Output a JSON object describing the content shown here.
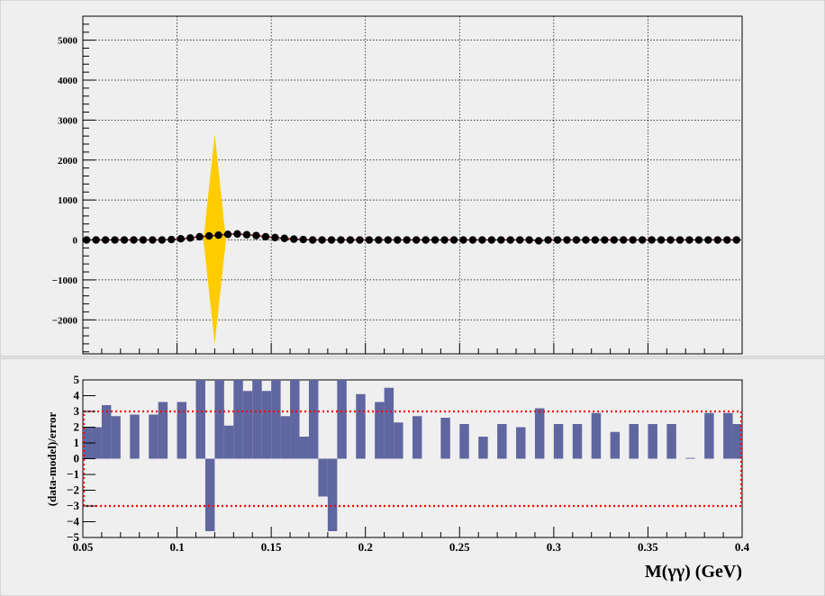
{
  "chart_data": [
    {
      "panel": "top",
      "type": "scatter",
      "x": [
        0.052,
        0.057,
        0.062,
        0.067,
        0.072,
        0.077,
        0.082,
        0.087,
        0.092,
        0.097,
        0.102,
        0.107,
        0.112,
        0.117,
        0.122,
        0.127,
        0.132,
        0.137,
        0.142,
        0.147,
        0.152,
        0.157,
        0.162,
        0.167,
        0.172,
        0.177,
        0.182,
        0.187,
        0.192,
        0.197,
        0.202,
        0.207,
        0.212,
        0.217,
        0.222,
        0.227,
        0.232,
        0.237,
        0.242,
        0.247,
        0.252,
        0.257,
        0.262,
        0.267,
        0.272,
        0.277,
        0.282,
        0.287,
        0.292,
        0.297,
        0.302,
        0.307,
        0.312,
        0.317,
        0.322,
        0.327,
        0.332,
        0.337,
        0.342,
        0.347,
        0.352,
        0.357,
        0.362,
        0.367,
        0.372,
        0.377,
        0.382,
        0.387,
        0.392,
        0.397
      ],
      "values": [
        0,
        0,
        0,
        0,
        0,
        0,
        0,
        0,
        0,
        10,
        30,
        50,
        80,
        100,
        120,
        140,
        150,
        130,
        110,
        80,
        60,
        40,
        20,
        10,
        0,
        0,
        0,
        0,
        0,
        0,
        0,
        0,
        0,
        0,
        0,
        0,
        0,
        0,
        0,
        0,
        0,
        0,
        0,
        0,
        0,
        0,
        0,
        0,
        -20,
        0,
        0,
        0,
        0,
        0,
        0,
        0,
        0,
        0,
        0,
        0,
        0,
        0,
        0,
        0,
        0,
        0,
        0,
        0,
        0,
        0
      ],
      "band": {
        "center": 0.12,
        "half_width": 0.006,
        "top": 2650,
        "bottom": -2600,
        "color": "#ffcc00"
      },
      "marker_color": "#000000",
      "model_color": "#ff0000",
      "xlim": [
        0.05,
        0.4
      ],
      "ylim": [
        -2850,
        5600
      ],
      "yticks": [
        -2000,
        -1000,
        0,
        1000,
        2000,
        3000,
        4000,
        5000
      ],
      "ytick_labels": [
        "−2000",
        "−1000",
        "0",
        "1000",
        "2000",
        "3000",
        "4000",
        "5000"
      ],
      "grid": true
    },
    {
      "panel": "bottom",
      "type": "bar",
      "x": [
        0.0525,
        0.0575,
        0.0625,
        0.0675,
        0.0725,
        0.0775,
        0.0825,
        0.0875,
        0.0925,
        0.0975,
        0.1025,
        0.1075,
        0.1125,
        0.1175,
        0.1225,
        0.1275,
        0.1325,
        0.1375,
        0.1425,
        0.1475,
        0.1525,
        0.1575,
        0.1625,
        0.1675,
        0.1725,
        0.1775,
        0.1825,
        0.1875,
        0.1925,
        0.1975,
        0.2025,
        0.2075,
        0.2125,
        0.2175,
        0.2225,
        0.2275,
        0.2325,
        0.2375,
        0.2425,
        0.2475,
        0.2525,
        0.2575,
        0.2625,
        0.2675,
        0.2725,
        0.2775,
        0.2825,
        0.2875,
        0.2925,
        0.2975,
        0.3025,
        0.3075,
        0.3125,
        0.3175,
        0.3225,
        0.3275,
        0.3325,
        0.3375,
        0.3425,
        0.3475,
        0.3525,
        0.3575,
        0.3625,
        0.3675,
        0.3725,
        0.3775,
        0.3825,
        0.3875,
        0.3925,
        0.3975
      ],
      "values": [
        2.0,
        2.0,
        3.4,
        2.7,
        0,
        2.8,
        0,
        2.8,
        3.6,
        0,
        3.6,
        0,
        5,
        -4.6,
        5,
        2.1,
        5,
        4.3,
        5,
        4.3,
        5,
        2.7,
        5,
        1.4,
        5,
        -2.4,
        -4.6,
        5,
        0,
        4.1,
        0,
        3.6,
        4.5,
        2.3,
        0,
        2.7,
        0,
        0,
        2.6,
        0,
        2.2,
        0,
        1.4,
        0,
        2.2,
        0,
        2.0,
        0,
        3.2,
        0,
        2.2,
        0,
        2.2,
        0,
        2.9,
        0,
        1.7,
        0,
        2.2,
        0,
        2.2,
        0,
        2.2,
        0,
        0.05,
        0,
        2.9,
        0,
        2.9,
        2.2
      ],
      "bar_color": "#6066a0",
      "band_lines": [
        3,
        -3
      ],
      "band_color": "#ff0000",
      "xlim": [
        0.05,
        0.4
      ],
      "ylim": [
        -5,
        5
      ],
      "yticks": [
        -5,
        -4,
        -3,
        -2,
        -1,
        0,
        1,
        2,
        3,
        4,
        5
      ],
      "ytick_labels": [
        "−5",
        "−4",
        "−3",
        "−2",
        "−1",
        "0",
        "1",
        "2",
        "3",
        "4",
        "5"
      ],
      "xticks": [
        0.05,
        0.1,
        0.15,
        0.2,
        0.25,
        0.3,
        0.35,
        0.4
      ],
      "xtick_labels": [
        "0.05",
        "0.1",
        "0.15",
        "0.2",
        "0.25",
        "0.3",
        "0.35",
        "0.4"
      ],
      "ylabel": "(data-model)/error",
      "xlabel": "M(γγ) (GeV)"
    }
  ]
}
